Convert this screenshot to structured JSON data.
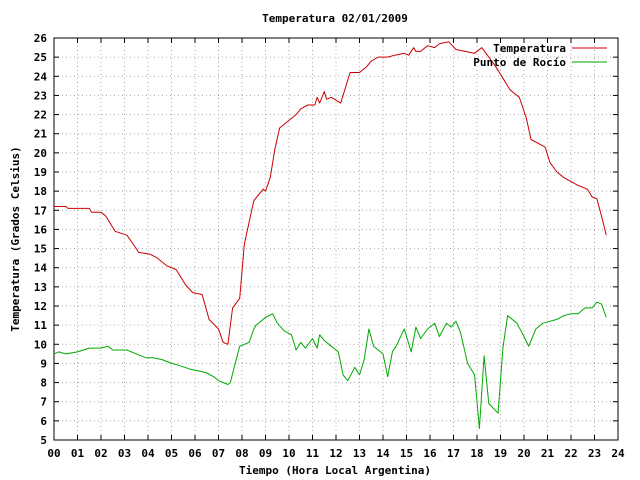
{
  "chart_data": {
    "type": "line",
    "title": "Temperatura 02/01/2009",
    "xlabel": "Tiempo (Hora Local Argentina)",
    "ylabel": "Temperatura (Grados Celsius)",
    "xlim": [
      0,
      24
    ],
    "ylim": [
      5,
      26
    ],
    "x_ticks": [
      "00",
      "01",
      "02",
      "03",
      "04",
      "05",
      "06",
      "07",
      "08",
      "09",
      "10",
      "11",
      "12",
      "13",
      "14",
      "15",
      "16",
      "17",
      "18",
      "19",
      "20",
      "21",
      "22",
      "23",
      "24"
    ],
    "y_ticks": [
      5,
      6,
      7,
      8,
      9,
      10,
      11,
      12,
      13,
      14,
      15,
      16,
      17,
      18,
      19,
      20,
      21,
      22,
      23,
      24,
      25,
      26
    ],
    "grid": true,
    "legend_position": "top-right",
    "series": [
      {
        "name": "Temperatura",
        "color": "#cc0000",
        "x": [
          0,
          0.5,
          0.6,
          1.5,
          1.6,
          2.0,
          2.2,
          2.6,
          3.1,
          3.5,
          3.6,
          4.1,
          4.4,
          4.8,
          5.2,
          5.4,
          5.6,
          5.9,
          6.3,
          6.6,
          7.0,
          7.2,
          7.4,
          7.6,
          7.9,
          8.1,
          8.2,
          8.5,
          8.7,
          8.9,
          9.0,
          9.2,
          9.4,
          9.6,
          9.9,
          10.3,
          10.5,
          10.8,
          11.1,
          11.2,
          11.3,
          11.5,
          11.6,
          11.8,
          12.2,
          12.4,
          12.6,
          13.0,
          13.3,
          13.5,
          13.8,
          14.2,
          14.5,
          14.9,
          15.1,
          15.3,
          15.4,
          15.6,
          15.9,
          16.2,
          16.4,
          16.8,
          17.1,
          17.5,
          17.9,
          18.2,
          18.5,
          18.8,
          19.1,
          19.4,
          19.6,
          19.8,
          20.1,
          20.3,
          20.6,
          20.9,
          21.1,
          21.4,
          21.7,
          22.0,
          22.3,
          22.7,
          22.9,
          23.1,
          23.3,
          23.5
        ],
        "values": [
          17.2,
          17.2,
          17.1,
          17.1,
          16.9,
          16.9,
          16.7,
          15.9,
          15.7,
          15.0,
          14.8,
          14.7,
          14.5,
          14.1,
          13.9,
          13.5,
          13.1,
          12.7,
          12.6,
          11.3,
          10.8,
          10.1,
          10.0,
          11.9,
          12.4,
          15.2,
          15.8,
          17.5,
          17.8,
          18.1,
          18.0,
          18.7,
          20.2,
          21.3,
          21.6,
          22.0,
          22.3,
          22.5,
          22.5,
          22.9,
          22.6,
          23.2,
          22.8,
          22.9,
          22.6,
          23.4,
          24.2,
          24.2,
          24.5,
          24.8,
          25.0,
          25.0,
          25.1,
          25.2,
          25.1,
          25.5,
          25.3,
          25.3,
          25.6,
          25.5,
          25.7,
          25.8,
          25.4,
          25.3,
          25.2,
          25.5,
          25.0,
          24.5,
          23.9,
          23.3,
          23.1,
          22.9,
          21.8,
          20.7,
          20.5,
          20.3,
          19.5,
          19.0,
          18.7,
          18.5,
          18.3,
          18.1,
          17.7,
          17.6,
          16.7,
          15.7
        ]
      },
      {
        "name": "Punto de Rocío",
        "color": "#00aa00",
        "x": [
          0,
          0.2,
          0.5,
          1.0,
          1.5,
          2.0,
          2.3,
          2.5,
          3.1,
          3.5,
          3.9,
          4.2,
          4.6,
          5.0,
          5.3,
          5.8,
          6.2,
          6.5,
          6.8,
          7.0,
          7.2,
          7.4,
          7.5,
          7.9,
          8.3,
          8.5,
          8.6,
          8.8,
          9.0,
          9.3,
          9.5,
          9.8,
          10.1,
          10.3,
          10.5,
          10.7,
          11.0,
          11.2,
          11.3,
          11.5,
          11.8,
          12.1,
          12.3,
          12.5,
          12.8,
          13.0,
          13.2,
          13.4,
          13.6,
          14.0,
          14.2,
          14.4,
          14.6,
          14.9,
          15.2,
          15.4,
          15.6,
          15.9,
          16.2,
          16.4,
          16.7,
          16.9,
          17.1,
          17.3,
          17.6,
          17.9,
          18.1,
          18.3,
          18.5,
          18.9,
          19.1,
          19.3,
          19.7,
          20.0,
          20.2,
          20.5,
          20.8,
          21.1,
          21.4,
          21.7,
          22.0,
          22.3,
          22.6,
          22.9,
          23.1,
          23.3,
          23.5
        ],
        "values": [
          9.5,
          9.6,
          9.5,
          9.6,
          9.8,
          9.8,
          9.9,
          9.7,
          9.7,
          9.5,
          9.3,
          9.3,
          9.2,
          9.0,
          8.9,
          8.7,
          8.6,
          8.5,
          8.3,
          8.1,
          8.0,
          7.9,
          8.0,
          9.9,
          10.1,
          10.8,
          11.0,
          11.2,
          11.4,
          11.6,
          11.1,
          10.7,
          10.5,
          9.7,
          10.1,
          9.8,
          10.3,
          9.8,
          10.5,
          10.2,
          9.9,
          9.6,
          8.4,
          8.1,
          8.8,
          8.4,
          9.2,
          10.8,
          9.9,
          9.5,
          8.3,
          9.6,
          10.0,
          10.8,
          9.6,
          10.9,
          10.3,
          10.8,
          11.1,
          10.4,
          11.1,
          10.9,
          11.2,
          10.6,
          9.0,
          8.4,
          5.6,
          9.4,
          6.9,
          6.4,
          9.8,
          11.5,
          11.1,
          10.4,
          9.9,
          10.8,
          11.1,
          11.2,
          11.3,
          11.5,
          11.6,
          11.6,
          11.9,
          11.9,
          12.2,
          12.1,
          11.4
        ]
      }
    ]
  }
}
